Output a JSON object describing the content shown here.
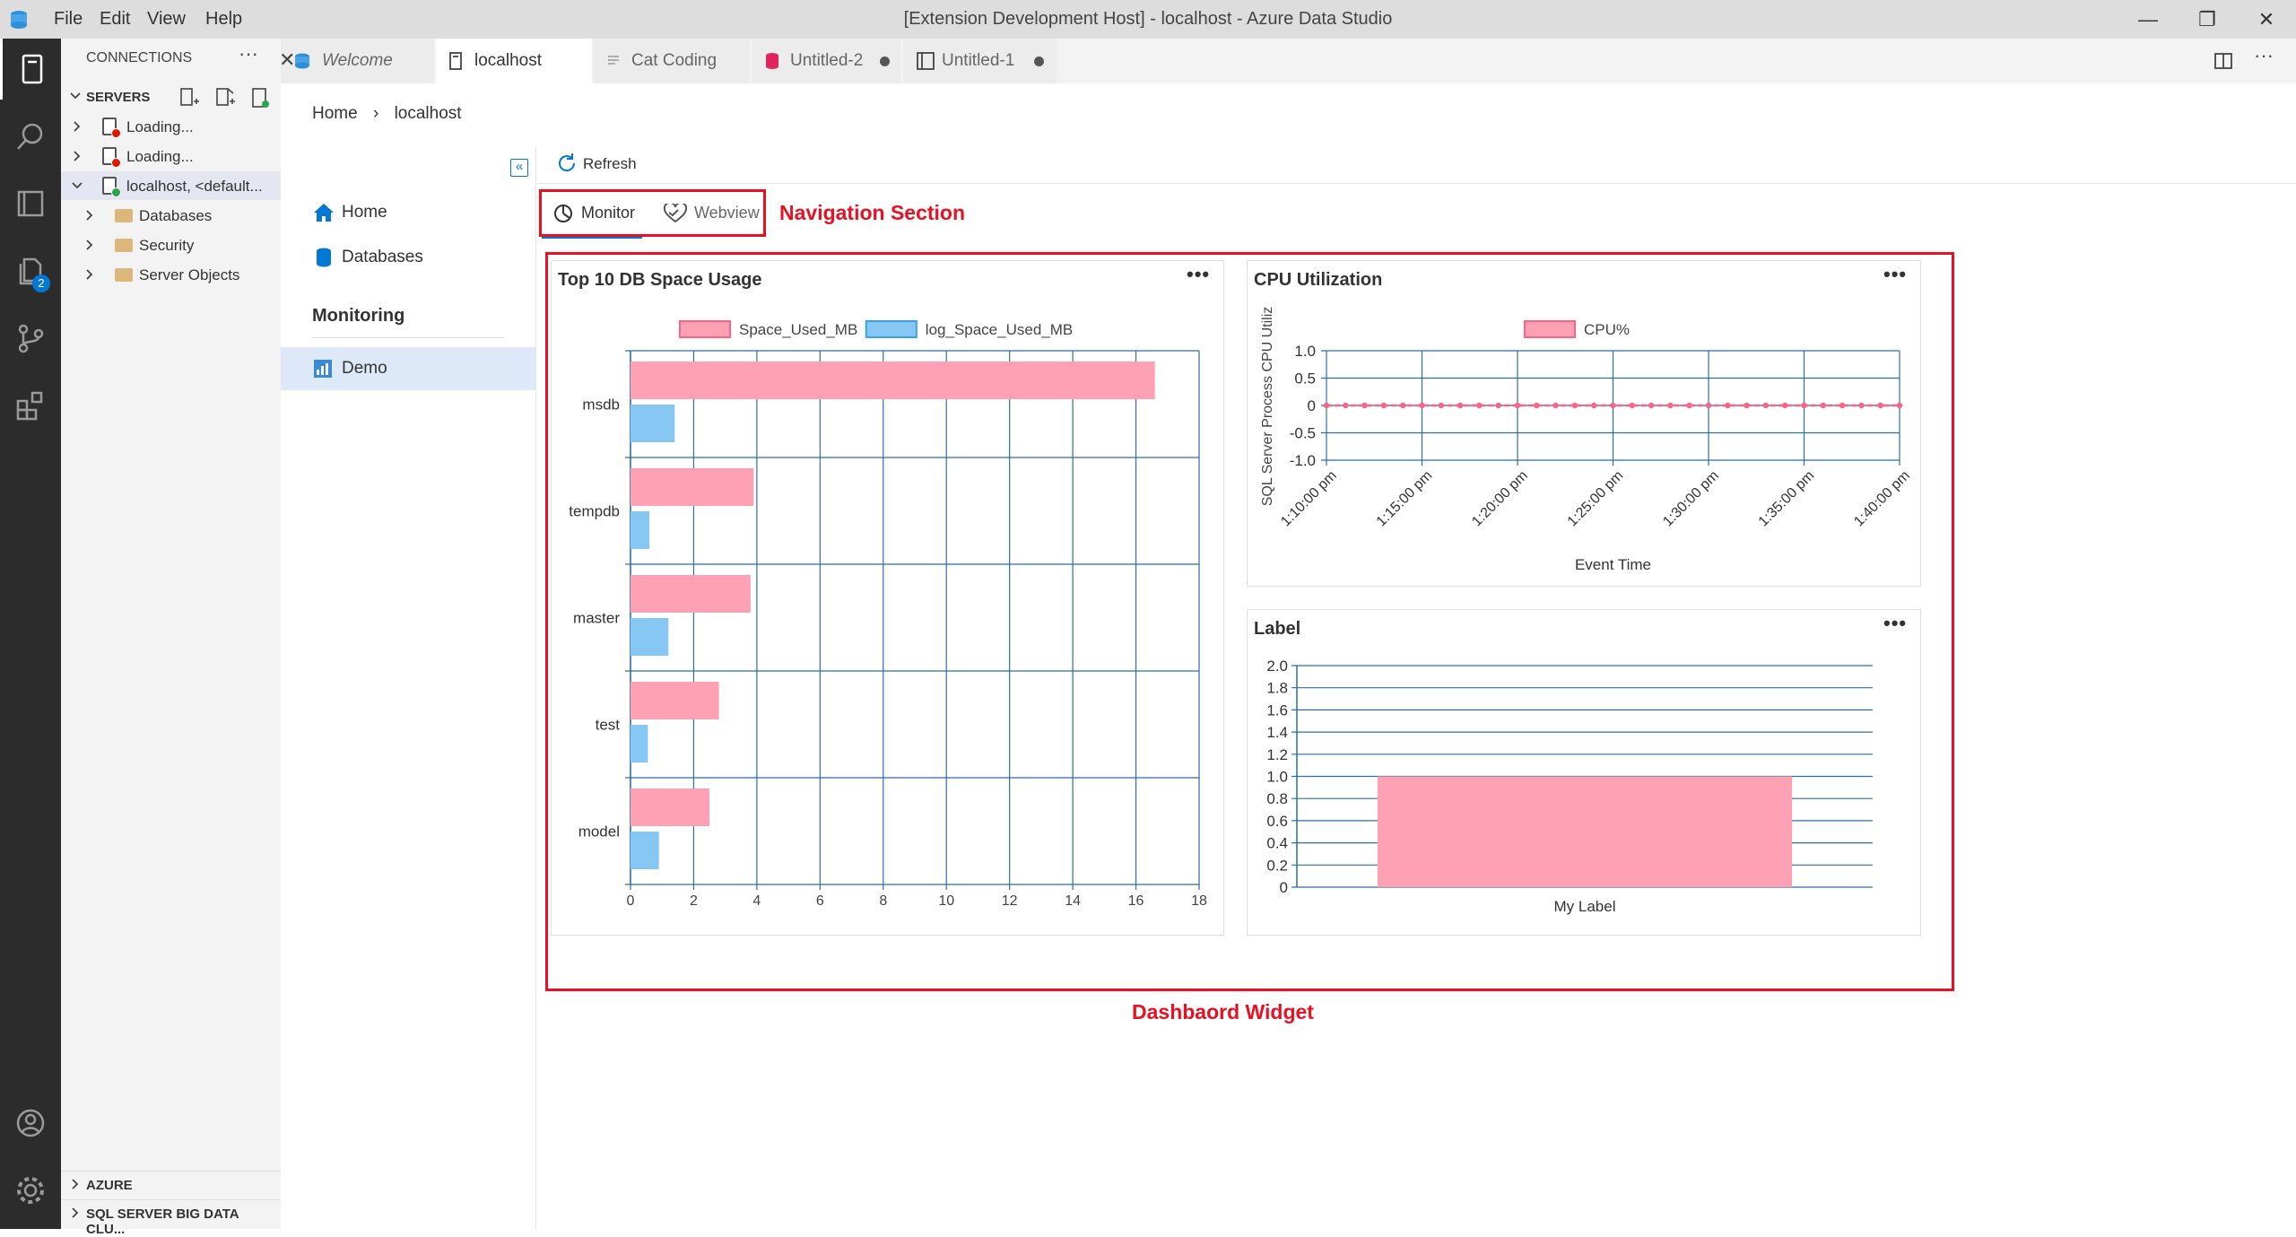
{
  "window": {
    "title": "[Extension Development Host] - localhost - Azure Data Studio"
  },
  "menu": [
    "File",
    "Edit",
    "View",
    "Help"
  ],
  "activity": {
    "badge": "2"
  },
  "sidebar": {
    "header": "CONNECTIONS",
    "servers_label": "SERVERS",
    "azure_label": "AZURE",
    "bigdata_label": "SQL SERVER BIG DATA CLU...",
    "tree": [
      {
        "label": "Loading...",
        "status_color": "#e51400"
      },
      {
        "label": "Loading...",
        "status_color": "#e51400"
      },
      {
        "label": "localhost, <default...",
        "status_color": "#2da44e"
      },
      {
        "label": "Databases"
      },
      {
        "label": "Security"
      },
      {
        "label": "Server Objects"
      }
    ]
  },
  "tabs": [
    {
      "label": "Welcome"
    },
    {
      "label": "localhost"
    },
    {
      "label": "Cat Coding"
    },
    {
      "label": "Untitled-2"
    },
    {
      "label": "Untitled-1"
    }
  ],
  "breadcrumb": {
    "home": "Home",
    "separator": "›",
    "current": "localhost"
  },
  "dashboard_nav": {
    "items": [
      {
        "label": "Home"
      },
      {
        "label": "Databases"
      }
    ],
    "section": "Monitoring",
    "section_items": [
      {
        "label": "Demo"
      }
    ]
  },
  "toolbar": {
    "refresh": "Refresh"
  },
  "page_tabs": [
    {
      "label": "Monitor"
    },
    {
      "label": "Webview"
    }
  ],
  "annotations": {
    "nav": "Navigation Section",
    "widget": "Dashbaord Widget",
    "color": "#e81123"
  },
  "colors": {
    "pink": "#ffa1b5",
    "pink_border": "#ff6384",
    "blue": "#86c7f3",
    "blue_border": "#36a2eb",
    "accent": "#0078d4"
  },
  "widgets": {
    "space": {
      "title": "Top 10 DB Space Usage",
      "more": "•••"
    },
    "cpu": {
      "title": "CPU Utilization",
      "more": "•••"
    },
    "label": {
      "title": "Label",
      "more": "•••"
    }
  },
  "chart_data": [
    {
      "type": "bar",
      "orientation": "horizontal",
      "title": "Top 10 DB Space Usage",
      "categories": [
        "msdb",
        "tempdb",
        "master",
        "test",
        "model"
      ],
      "series": [
        {
          "name": "Space_Used_MB",
          "values": [
            16.6,
            3.9,
            3.8,
            2.8,
            2.5
          ]
        },
        {
          "name": "log_Space_Used_MB",
          "values": [
            1.4,
            0.6,
            1.2,
            0.55,
            0.9
          ]
        }
      ],
      "xlim": [
        0,
        18
      ],
      "xticks": [
        "0",
        "2",
        "4",
        "6",
        "8",
        "10",
        "12",
        "14",
        "16",
        "18"
      ],
      "legend": "top",
      "grid": true
    },
    {
      "type": "line",
      "title": "CPU Utilization",
      "series": [
        {
          "name": "CPU%",
          "values": [
            0,
            0,
            0,
            0,
            0,
            0,
            0,
            0,
            0,
            0,
            0,
            0,
            0,
            0,
            0,
            0,
            0,
            0,
            0,
            0,
            0,
            0,
            0,
            0,
            0,
            0,
            0,
            0,
            0,
            0,
            0
          ]
        }
      ],
      "xlabel": "Event Time",
      "ylabel": "SQL Server Process CPU Utiliz",
      "ylim": [
        -1.0,
        1.0
      ],
      "yticks": [
        "1.0",
        "0.5",
        "0",
        "-0.5",
        "-1.0"
      ],
      "xticks": [
        "1:10:00 pm",
        "1:15:00 pm",
        "1:20:00 pm",
        "1:25:00 pm",
        "1:30:00 pm",
        "1:35:00 pm",
        "1:40:00 pm"
      ],
      "legend": "top",
      "grid": true
    },
    {
      "type": "bar",
      "title": "Label",
      "categories": [
        "My Label"
      ],
      "values": [
        1.0
      ],
      "ylim": [
        0,
        2.0
      ],
      "yticks": [
        "2.0",
        "1.8",
        "1.6",
        "1.4",
        "1.2",
        "1.0",
        "0.8",
        "0.6",
        "0.4",
        "0.2",
        "0"
      ],
      "grid": true
    }
  ]
}
